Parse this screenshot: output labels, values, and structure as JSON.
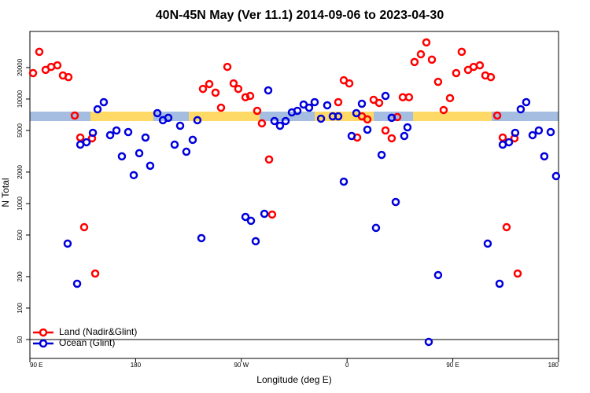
{
  "chart_data": {
    "type": "scatter",
    "title": "40N-45N May (Ver 11.1)   2014-09-06 to 2023-04-30",
    "x_label": "Longitude (deg E)",
    "y_label": "N Total",
    "log_y": true,
    "xlim": [
      90,
      540
    ],
    "ylim": [
      33,
      44300
    ],
    "xticks": [
      {
        "value": 90,
        "label": "90 E"
      },
      180,
      {
        "value": 270,
        "label": "90 W"
      },
      {
        "value": 360,
        "label": "0"
      },
      {
        "value": 450,
        "label": "90 E"
      },
      {
        "value": 540,
        "label": "180"
      }
    ],
    "yticks": [
      50,
      100,
      200,
      500,
      1000,
      2000,
      5000,
      10000,
      20000
    ],
    "hline": 50,
    "legend_position": "bottom-left",
    "series": [
      {
        "name": "Land (Nadir&Glint)",
        "color": "#ff0000",
        "x": [
          92.7,
          98.0,
          103.4,
          108.1,
          113.4,
          118.1,
          122.8,
          128.2,
          132.9,
          136.2,
          142.9,
          145.6,
          237.3,
          242.7,
          248.0,
          252.7,
          258.1,
          263.4,
          267.4,
          273.5,
          277.5,
          283.5,
          287.5,
          293.6,
          296.2,
          352.5,
          357.2,
          361.9,
          368.6,
          372.6,
          377.3,
          382.6,
          387.3,
          392.7,
          398.0,
          402.7,
          407.4,
          412.7,
          417.4,
          422.8,
          427.5,
          432.2,
          437.5,
          442.2,
          447.6,
          452.9,
          457.6,
          463.0,
          467.7,
          473.0,
          477.7,
          482.4,
          487.8,
          492.5,
          495.8,
          502.5,
          505.2
        ],
        "values": [
          17700,
          28300,
          19000,
          20300,
          21000,
          16800,
          16200,
          6950,
          4280,
          594,
          4210,
          214,
          12500,
          13900,
          11500,
          8260,
          20300,
          14100,
          12500,
          10400,
          10700,
          7710,
          5850,
          2640,
          785,
          9330,
          15100,
          14100,
          4280,
          6830,
          6380,
          9830,
          9170,
          5000,
          4210,
          6720,
          10400,
          10400,
          22600,
          26800,
          34800,
          23800,
          14600,
          7850,
          10200,
          17700,
          28300,
          19000,
          20300,
          21000,
          16800,
          16200,
          6950,
          4280,
          594,
          4210,
          214
        ]
      },
      {
        "name": "Ocean (Glint)",
        "color": "#0000dd",
        "x": [
          122.1,
          130.2,
          132.9,
          138.2,
          143.6,
          147.6,
          152.9,
          158.3,
          163.7,
          168.3,
          173.7,
          178.4,
          183.1,
          188.4,
          192.4,
          198.5,
          203.2,
          207.8,
          213.2,
          217.9,
          223.2,
          228.6,
          232.6,
          236.0,
          273.5,
          278.2,
          282.2,
          289.6,
          292.9,
          298.2,
          302.9,
          307.7,
          313.0,
          317.7,
          323.0,
          327.7,
          332.4,
          337.8,
          343.1,
          347.8,
          352.5,
          357.2,
          363.9,
          367.9,
          372.6,
          377.3,
          384.6,
          389.4,
          392.7,
          398.0,
          401.4,
          408.7,
          411.4,
          429.5,
          437.5,
          479.7,
          489.8,
          492.5,
          497.8,
          503.1,
          507.8,
          512.5,
          517.9,
          523.2,
          527.9,
          533.3,
          537.9
        ],
        "values": [
          414,
          171,
          3660,
          3860,
          4750,
          7980,
          9330,
          4510,
          5000,
          2830,
          4830,
          1870,
          3030,
          4280,
          2300,
          7320,
          6270,
          6610,
          3660,
          5550,
          3130,
          4070,
          6270,
          467,
          745,
          684,
          436,
          798,
          12100,
          6160,
          5550,
          6160,
          7450,
          7710,
          8860,
          8260,
          9330,
          6490,
          8710,
          6830,
          6830,
          1620,
          4430,
          7320,
          9010,
          5090,
          585,
          2920,
          10700,
          6610,
          1035,
          4430,
          5360,
          47.5,
          207,
          414,
          171,
          3660,
          3860,
          4750,
          7980,
          9330,
          4510,
          5000,
          2830,
          4830,
          1830
        ]
      }
    ]
  }
}
